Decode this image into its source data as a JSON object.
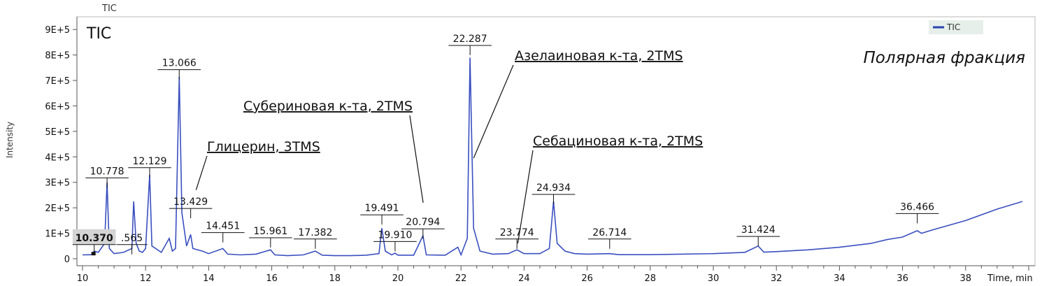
{
  "chart_data": {
    "type": "line",
    "top_label": "TIC",
    "title": "TIC",
    "subtitle": "Полярная фракция",
    "xlabel": "Time, min",
    "ylabel": "Intensity",
    "xlim": [
      10,
      40.2
    ],
    "ylim": [
      0,
      950000
    ],
    "x_ticks": [
      10,
      12,
      14,
      16,
      18,
      20,
      22,
      24,
      26,
      28,
      30,
      32,
      34,
      36,
      38
    ],
    "x_tick_labels": [
      "10",
      "12",
      "14",
      "16",
      "18",
      "20",
      "22",
      "24",
      "26",
      "28",
      "30",
      "32",
      "34",
      "36",
      "38"
    ],
    "y_ticks": [
      0,
      100000,
      200000,
      300000,
      400000,
      500000,
      600000,
      700000,
      800000,
      900000
    ],
    "y_tick_labels": [
      "0",
      "1E+5",
      "2E+5",
      "3E+5",
      "4E+5",
      "5E+5",
      "6E+5",
      "7E+5",
      "8E+5",
      "9E+5"
    ],
    "legend": {
      "entries": [
        "TIC"
      ],
      "placement": "top-right",
      "color": "#2a44b0"
    },
    "line_color": "#3a4fbf",
    "series": [
      {
        "name": "TIC",
        "x": [
          10.0,
          10.3,
          10.37,
          10.5,
          10.7,
          10.778,
          10.85,
          11.0,
          11.3,
          11.565,
          11.62,
          11.7,
          11.8,
          11.9,
          12.0,
          12.129,
          12.2,
          12.5,
          12.75,
          12.85,
          12.95,
          13.066,
          13.15,
          13.3,
          13.429,
          13.5,
          13.8,
          14.0,
          14.451,
          14.6,
          15.0,
          15.5,
          15.961,
          16.1,
          16.5,
          17.0,
          17.382,
          17.6,
          18.0,
          18.5,
          19.0,
          19.4,
          19.491,
          19.6,
          19.8,
          19.91,
          20.0,
          20.5,
          20.794,
          20.9,
          21.5,
          21.9,
          22.0,
          22.2,
          22.287,
          22.4,
          22.6,
          23.0,
          23.5,
          23.774,
          24.0,
          24.5,
          24.8,
          24.934,
          25.05,
          25.3,
          25.6,
          26.0,
          26.714,
          27.0,
          28.0,
          29.0,
          30.0,
          31.0,
          31.424,
          31.6,
          32.0,
          33.0,
          34.0,
          35.0,
          35.5,
          36.0,
          36.466,
          36.6,
          37.0,
          38.0,
          39.0,
          39.8
        ],
        "y": [
          15000,
          16000,
          30000,
          25000,
          60000,
          300000,
          40000,
          20000,
          25000,
          40000,
          225000,
          60000,
          30000,
          25000,
          40000,
          330000,
          50000,
          25000,
          80000,
          30000,
          40000,
          715000,
          180000,
          50000,
          95000,
          40000,
          30000,
          20000,
          40000,
          18000,
          15000,
          18000,
          35000,
          15000,
          12000,
          15000,
          30000,
          14000,
          12000,
          12000,
          14000,
          20000,
          120000,
          30000,
          15000,
          22000,
          14000,
          14000,
          90000,
          15000,
          14000,
          45000,
          15000,
          80000,
          790000,
          120000,
          30000,
          18000,
          20000,
          35000,
          20000,
          20000,
          40000,
          225000,
          60000,
          30000,
          20000,
          18000,
          20000,
          16000,
          16000,
          18000,
          20000,
          25000,
          50000,
          26000,
          28000,
          35000,
          45000,
          60000,
          75000,
          85000,
          110000,
          100000,
          115000,
          150000,
          195000,
          225000
        ]
      }
    ],
    "peak_labels": [
      "10.370",
      ".565",
      "10.778",
      "12.129",
      "13.066",
      "13.429",
      "14.451",
      "15.961",
      "17.382",
      "19.491",
      "19.910",
      "20.794",
      "22.287",
      "23.774",
      "24.934",
      "26.714",
      "31.424",
      "36.466"
    ],
    "peak_label_x": [
      10.37,
      11.565,
      10.778,
      12.129,
      13.066,
      13.429,
      14.451,
      15.961,
      17.382,
      19.491,
      19.91,
      20.794,
      22.287,
      23.774,
      24.934,
      26.714,
      31.424,
      36.466
    ],
    "peak_label_y": [
      28000,
      28000,
      290000,
      330000,
      715000,
      170000,
      75000,
      55000,
      50000,
      145000,
      40000,
      90000,
      810000,
      50000,
      225000,
      50000,
      60000,
      150000
    ],
    "annotations": [
      {
        "text": "Глицерин, 3TMS",
        "x": 13.6,
        "y": 270000
      },
      {
        "text": "Субериновая  к-та, 2TMS",
        "x": 20.8,
        "y": 220000
      },
      {
        "text": "Азелаиновая к-та, 2TMS",
        "x": 22.4,
        "y": 395000
      },
      {
        "text": "Себациновая  к-та, 2TMS",
        "x": 23.8,
        "y": 60000
      }
    ]
  }
}
